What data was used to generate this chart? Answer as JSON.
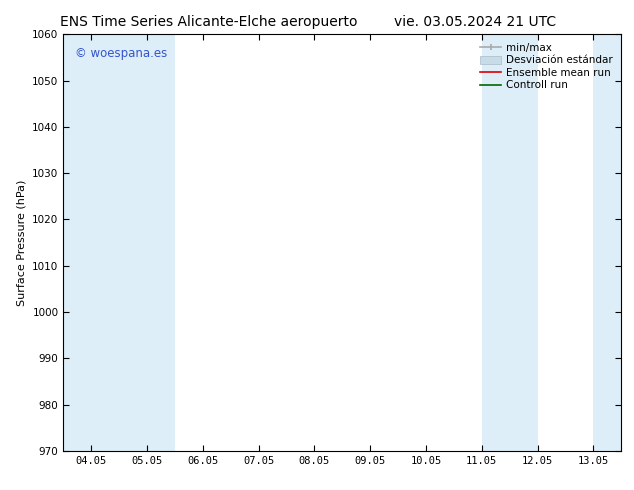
{
  "title_left": "ENS Time Series Alicante-Elche aeropuerto",
  "title_right": "vie. 03.05.2024 21 UTC",
  "ylabel": "Surface Pressure (hPa)",
  "ylim": [
    970,
    1060
  ],
  "yticks": [
    970,
    980,
    990,
    1000,
    1010,
    1020,
    1030,
    1040,
    1050,
    1060
  ],
  "xtick_labels": [
    "04.05",
    "05.05",
    "06.05",
    "07.05",
    "08.05",
    "09.05",
    "10.05",
    "11.05",
    "12.05",
    "13.05"
  ],
  "xtick_positions": [
    0,
    1,
    2,
    3,
    4,
    5,
    6,
    7,
    8,
    9
  ],
  "xlim": [
    -0.5,
    9.5
  ],
  "shaded_bands": [
    {
      "x_start": -0.5,
      "x_end": 0.5,
      "color": "#ddeef8"
    },
    {
      "x_start": 0.5,
      "x_end": 1.5,
      "color": "#ddeef8"
    },
    {
      "x_start": 7.0,
      "x_end": 8.0,
      "color": "#ddeef8"
    },
    {
      "x_start": 9.0,
      "x_end": 9.5,
      "color": "#ddeef8"
    }
  ],
  "watermark": "© woespana.es",
  "watermark_color": "#3355cc",
  "bg_color": "#ffffff",
  "title_fontsize": 10,
  "axis_label_fontsize": 8,
  "tick_fontsize": 7.5,
  "legend_fontsize": 7.5
}
